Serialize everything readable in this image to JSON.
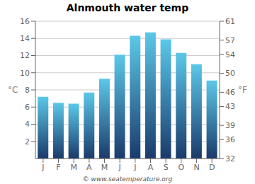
{
  "chart_data": {
    "type": "bar",
    "title": "Alnmouth water temp",
    "categories": [
      "J",
      "F",
      "M",
      "A",
      "M",
      "J",
      "J",
      "A",
      "S",
      "O",
      "N",
      "D"
    ],
    "values": [
      7.2,
      6.5,
      6.4,
      7.7,
      9.3,
      12.1,
      14.3,
      14.7,
      13.9,
      12.3,
      11.0,
      9.1
    ],
    "color": [
      "#1a3a6b",
      "#5bc8e8"
    ],
    "ylabel": "°C",
    "ylim": [
      0,
      16
    ],
    "yticks": [
      2,
      4,
      6,
      8,
      10,
      12,
      14,
      16
    ],
    "y2label": "°F",
    "y2lim": [
      32,
      61
    ],
    "y2ticks": [
      32,
      36,
      39,
      43,
      46,
      50,
      54,
      57,
      61
    ],
    "grid": true,
    "annotations": [
      "© www.seatemperature.org"
    ]
  }
}
